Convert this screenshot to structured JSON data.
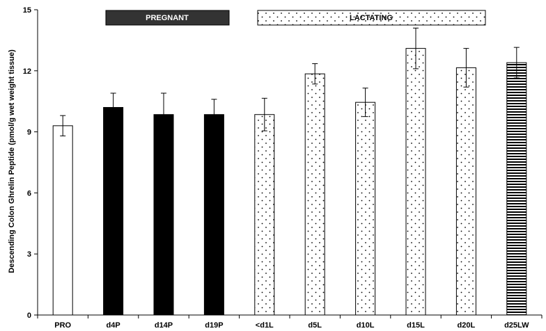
{
  "chart_data": {
    "type": "bar",
    "title": "",
    "xlabel": "",
    "ylabel": "Descending Colon Ghrelin Peptide (pmol/g wet weight tissue)",
    "ylim": [
      0,
      15
    ],
    "yticks": [
      "0",
      "3",
      "6",
      "9",
      "12",
      "15"
    ],
    "grid": false,
    "categories": [
      "PRO",
      "d4P",
      "d14P",
      "d19P",
      "<d1L",
      "d5L",
      "d10L",
      "d15L",
      "d20L",
      "d25LW"
    ],
    "values": [
      9.3,
      10.2,
      9.85,
      9.85,
      9.85,
      11.85,
      10.45,
      13.1,
      12.15,
      12.4
    ],
    "errors": [
      0.5,
      0.7,
      1.05,
      0.75,
      0.8,
      0.5,
      0.7,
      1.0,
      0.95,
      0.75
    ],
    "fills": [
      "white",
      "solid",
      "solid",
      "solid",
      "dots",
      "dots",
      "dots",
      "dots",
      "dots",
      "hstripes"
    ],
    "colors": {
      "bar_stroke": "#000000",
      "solid_fill": "#000000",
      "pregnant_banner": "#333333",
      "banner_text_light": "#ffffff"
    },
    "annotations": [
      {
        "label": "PREGNANT",
        "style": "dark",
        "span": [
          "d4P",
          "d19P"
        ]
      },
      {
        "label": "LACTATING",
        "style": "dotted",
        "span": [
          "<d1L",
          "d20L"
        ]
      }
    ]
  }
}
